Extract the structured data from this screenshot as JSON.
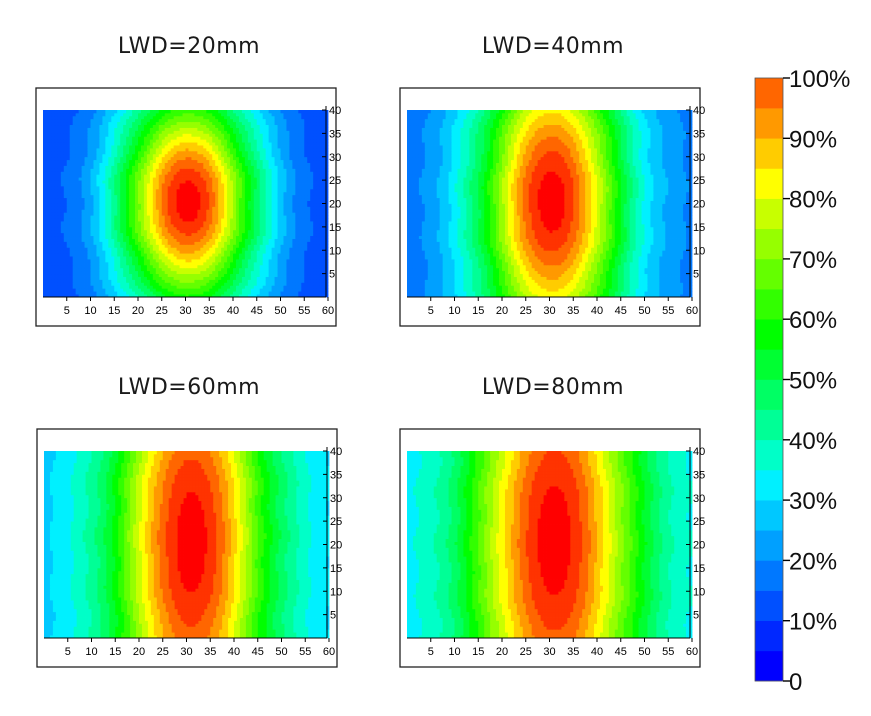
{
  "chart_data": [
    {
      "type": "heatmap",
      "title": "LWD=20mm",
      "x_ticks": [
        5,
        10,
        15,
        20,
        25,
        30,
        35,
        40,
        45,
        50,
        55,
        60
      ],
      "y_ticks": [
        5,
        10,
        15,
        20,
        25,
        30,
        35,
        40
      ],
      "xlim": [
        0,
        60
      ],
      "ylim": [
        0,
        40
      ],
      "center": [
        30.5,
        20.5
      ],
      "peak_percent": 100,
      "edge_percent": 10,
      "spread_x": 20,
      "spread_y": 33
    },
    {
      "type": "heatmap",
      "title": "LWD=40mm",
      "x_ticks": [
        5,
        10,
        15,
        20,
        25,
        30,
        35,
        40,
        45,
        50,
        55,
        60
      ],
      "y_ticks": [
        5,
        10,
        15,
        20,
        25,
        30,
        35,
        40
      ],
      "xlim": [
        0,
        60
      ],
      "ylim": [
        0,
        40
      ],
      "center": [
        30.5,
        20.5
      ],
      "peak_percent": 100,
      "edge_percent": 15,
      "spread_x": 21,
      "spread_y": 48
    },
    {
      "type": "heatmap",
      "title": "LWD=60mm",
      "x_ticks": [
        5,
        10,
        15,
        20,
        25,
        30,
        35,
        40,
        45,
        50,
        55,
        60
      ],
      "y_ticks": [
        5,
        10,
        15,
        20,
        25,
        30,
        35,
        40
      ],
      "xlim": [
        0,
        60
      ],
      "ylim": [
        0,
        40
      ],
      "center": [
        31,
        20.5
      ],
      "peak_percent": 100,
      "edge_percent": 25,
      "spread_x": 22,
      "spread_y": 75
    },
    {
      "type": "heatmap",
      "title": "LWD=80mm",
      "x_ticks": [
        5,
        10,
        15,
        20,
        25,
        30,
        35,
        40,
        45,
        50,
        55,
        60
      ],
      "y_ticks": [
        5,
        10,
        15,
        20,
        25,
        30,
        35,
        40
      ],
      "xlim": [
        0,
        60
      ],
      "ylim": [
        0,
        40
      ],
      "center": [
        31,
        21
      ],
      "peak_percent": 100,
      "edge_percent": 27,
      "spread_x": 24,
      "spread_y": 80
    }
  ],
  "colorbar": {
    "min": 0,
    "max": 100,
    "step": 5,
    "tick_labels": [
      "0",
      "10%",
      "20%",
      "30%",
      "40%",
      "50%",
      "60%",
      "70%",
      "80%",
      "90%",
      "100%"
    ],
    "colors": [
      "#0000ff",
      "#0028ff",
      "#0050ff",
      "#0078ff",
      "#00a0ff",
      "#00c8ff",
      "#00f0ff",
      "#00ffc8",
      "#00ff96",
      "#00ff64",
      "#00ff32",
      "#00ff00",
      "#32ff00",
      "#64ff00",
      "#96ff00",
      "#c8ff00",
      "#ffff00",
      "#ffcc00",
      "#ff9900",
      "#ff6600",
      "#ff3300",
      "#ff0000"
    ]
  }
}
